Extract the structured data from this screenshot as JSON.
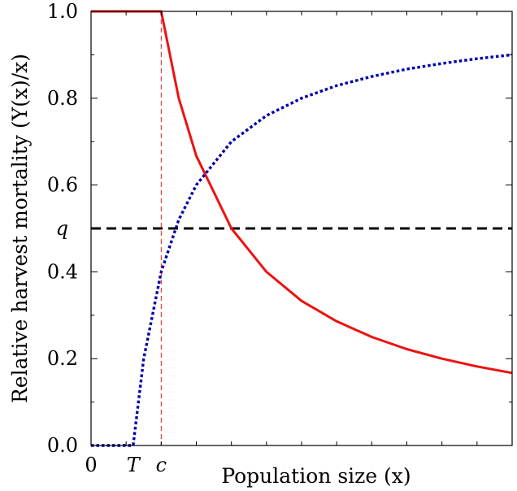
{
  "chart_data": {
    "type": "line",
    "xlabel": "Population size (x)",
    "ylabel": "Relative harvest mortality (Y(x)/x)",
    "xlim": [
      0,
      12
    ],
    "ylim": [
      0,
      1
    ],
    "x_tick_labels": [
      {
        "x": 0,
        "label": "0",
        "italic": false
      },
      {
        "x": 1.2,
        "label": "T",
        "italic": true
      },
      {
        "x": 2,
        "label": "c",
        "italic": true
      }
    ],
    "y_tick_labels": [
      {
        "y": 0.0,
        "label": "0.0",
        "italic": false
      },
      {
        "y": 0.2,
        "label": "0.2",
        "italic": false
      },
      {
        "y": 0.4,
        "label": "0.4",
        "italic": false
      },
      {
        "y": 0.5,
        "label": "q",
        "italic": true
      },
      {
        "y": 0.6,
        "label": "0.6",
        "italic": false
      },
      {
        "y": 0.8,
        "label": "0.8",
        "italic": false
      },
      {
        "y": 1.0,
        "label": "1.0",
        "italic": false
      }
    ],
    "reference_lines": [
      {
        "orientation": "horizontal",
        "value": 0.5,
        "color": "#000000",
        "style": "dashed"
      },
      {
        "orientation": "vertical",
        "value": 2,
        "color": "#e53030",
        "style": "dashed"
      }
    ],
    "series": [
      {
        "color": "#ee1111",
        "style": "solid",
        "x": [
          0,
          2,
          2.5,
          3,
          4,
          5,
          6,
          7,
          8,
          9,
          10,
          11,
          12
        ],
        "y": [
          1.0,
          1.0,
          0.8,
          0.667,
          0.5,
          0.4,
          0.333,
          0.286,
          0.25,
          0.222,
          0.2,
          0.182,
          0.167
        ]
      },
      {
        "color": "#0000aa",
        "style": "dotted",
        "x": [
          0,
          1.2,
          1.5,
          2,
          2.5,
          3,
          4,
          5,
          6,
          7,
          8,
          9,
          10,
          11,
          12
        ],
        "y": [
          0.0,
          0.0,
          0.2,
          0.4,
          0.52,
          0.6,
          0.7,
          0.76,
          0.8,
          0.829,
          0.85,
          0.867,
          0.88,
          0.891,
          0.9
        ]
      }
    ]
  }
}
